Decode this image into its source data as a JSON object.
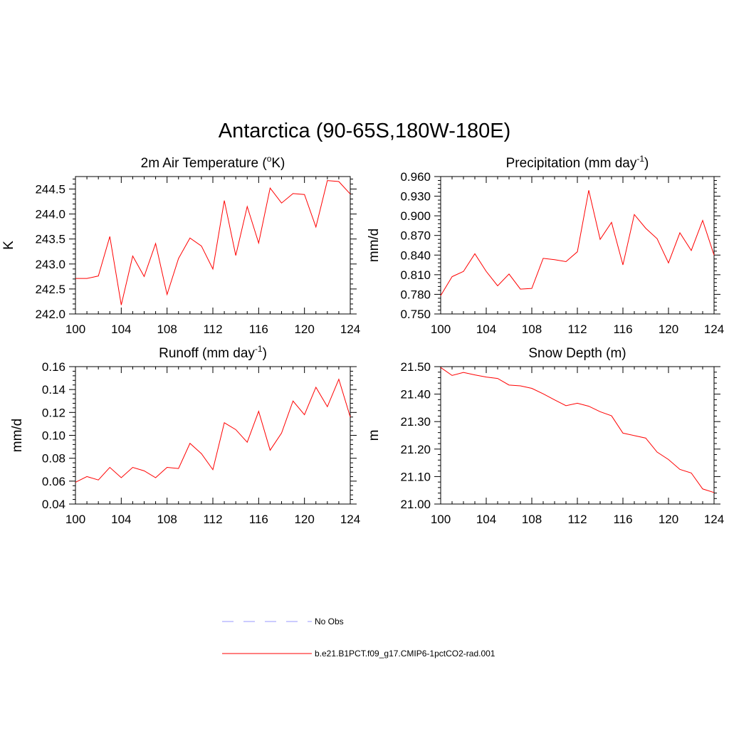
{
  "figure": {
    "title": "Antarctica (90-65S,180W-180E)"
  },
  "colors": {
    "model_line": "#ff0000",
    "obs_line": "#9999ff",
    "axis": "#000000"
  },
  "legend": {
    "items": [
      {
        "label": "No Obs",
        "style": "dashed",
        "color": "#9999ff"
      },
      {
        "label": "b.e21.B1PCT.f09_g17.CMIP6-1pctCO2-rad.001",
        "style": "solid",
        "color": "#ff0000"
      }
    ]
  },
  "chart_data": [
    {
      "type": "line",
      "title": "2m Air Temperature (°K)",
      "title_parts": [
        "2m Air Temperature (",
        "o",
        "K)"
      ],
      "ylabel": "K",
      "xlabel": "",
      "xlim": [
        100,
        124
      ],
      "ylim": [
        242.0,
        244.75
      ],
      "x_ticks": [
        100,
        104,
        108,
        112,
        116,
        120,
        124
      ],
      "y_ticks": [
        242.0,
        242.5,
        243.0,
        243.5,
        244.0,
        244.5
      ],
      "y_tick_labels": [
        "242.0",
        "242.5",
        "243.0",
        "243.5",
        "244.0",
        "244.5"
      ],
      "series": [
        {
          "x": [
            100,
            101,
            102,
            103,
            104,
            105,
            106,
            107,
            108,
            109,
            110,
            111,
            112,
            113,
            114,
            115,
            116,
            117,
            118,
            119,
            120,
            121,
            122,
            123,
            124
          ],
          "values": [
            242.71,
            242.71,
            242.76,
            243.55,
            242.18,
            243.16,
            242.75,
            243.41,
            242.39,
            243.11,
            243.52,
            243.36,
            242.9,
            244.27,
            243.17,
            244.15,
            243.42,
            244.52,
            244.22,
            244.41,
            244.39,
            243.74,
            244.67,
            244.65,
            244.4
          ]
        }
      ]
    },
    {
      "type": "line",
      "title": "Precipitation (mm day-1)",
      "title_parts": [
        "Precipitation (mm day",
        "-1",
        ")"
      ],
      "ylabel": "mm/d",
      "xlabel": "",
      "xlim": [
        100,
        124
      ],
      "ylim": [
        0.75,
        0.96
      ],
      "x_ticks": [
        100,
        104,
        108,
        112,
        116,
        120,
        124
      ],
      "y_ticks": [
        0.75,
        0.78,
        0.81,
        0.84,
        0.87,
        0.9,
        0.93,
        0.96
      ],
      "y_tick_labels": [
        "0.750",
        "0.780",
        "0.810",
        "0.840",
        "0.870",
        "0.900",
        "0.930",
        "0.960"
      ],
      "series": [
        {
          "x": [
            100,
            101,
            102,
            103,
            104,
            105,
            106,
            107,
            108,
            109,
            110,
            111,
            112,
            113,
            114,
            115,
            116,
            117,
            118,
            119,
            120,
            121,
            122,
            123,
            124
          ],
          "values": [
            0.778,
            0.807,
            0.815,
            0.842,
            0.815,
            0.793,
            0.811,
            0.788,
            0.789,
            0.835,
            0.833,
            0.83,
            0.845,
            0.939,
            0.864,
            0.89,
            0.825,
            0.902,
            0.881,
            0.865,
            0.828,
            0.874,
            0.847,
            0.893,
            0.84
          ]
        }
      ]
    },
    {
      "type": "line",
      "title": "Runoff (mm day-1)",
      "title_parts": [
        "Runoff (mm day",
        "-1",
        ")"
      ],
      "ylabel": "mm/d",
      "xlabel": "",
      "xlim": [
        100,
        124
      ],
      "ylim": [
        0.04,
        0.16
      ],
      "x_ticks": [
        100,
        104,
        108,
        112,
        116,
        120,
        124
      ],
      "y_ticks": [
        0.04,
        0.06,
        0.08,
        0.1,
        0.12,
        0.14,
        0.16
      ],
      "y_tick_labels": [
        "0.04",
        "0.06",
        "0.08",
        "0.10",
        "0.12",
        "0.14",
        "0.16"
      ],
      "series": [
        {
          "x": [
            100,
            101,
            102,
            103,
            104,
            105,
            106,
            107,
            108,
            109,
            110,
            111,
            112,
            113,
            114,
            115,
            116,
            117,
            118,
            119,
            120,
            121,
            122,
            123,
            124
          ],
          "values": [
            0.059,
            0.064,
            0.061,
            0.072,
            0.063,
            0.072,
            0.069,
            0.063,
            0.072,
            0.071,
            0.093,
            0.084,
            0.07,
            0.111,
            0.105,
            0.094,
            0.121,
            0.087,
            0.102,
            0.13,
            0.118,
            0.142,
            0.125,
            0.149,
            0.116
          ]
        }
      ]
    },
    {
      "type": "line",
      "title": "Snow Depth (m)",
      "title_parts": [
        "Snow Depth (m)"
      ],
      "ylabel": "m",
      "xlabel": "",
      "xlim": [
        100,
        124
      ],
      "ylim": [
        21.0,
        21.5
      ],
      "x_ticks": [
        100,
        104,
        108,
        112,
        116,
        120,
        124
      ],
      "y_ticks": [
        21.0,
        21.1,
        21.2,
        21.3,
        21.4,
        21.5
      ],
      "y_tick_labels": [
        "21.00",
        "21.10",
        "21.20",
        "21.30",
        "21.40",
        "21.50"
      ],
      "series": [
        {
          "x": [
            100,
            101,
            102,
            103,
            104,
            105,
            106,
            107,
            108,
            109,
            110,
            111,
            112,
            113,
            114,
            115,
            116,
            117,
            118,
            119,
            120,
            121,
            122,
            123,
            124
          ],
          "values": [
            21.497,
            21.468,
            21.479,
            21.47,
            21.462,
            21.457,
            21.433,
            21.43,
            21.421,
            21.401,
            21.379,
            21.358,
            21.367,
            21.356,
            21.336,
            21.321,
            21.258,
            21.249,
            21.24,
            21.189,
            21.162,
            21.126,
            21.113,
            21.055,
            21.042
          ]
        }
      ]
    }
  ]
}
